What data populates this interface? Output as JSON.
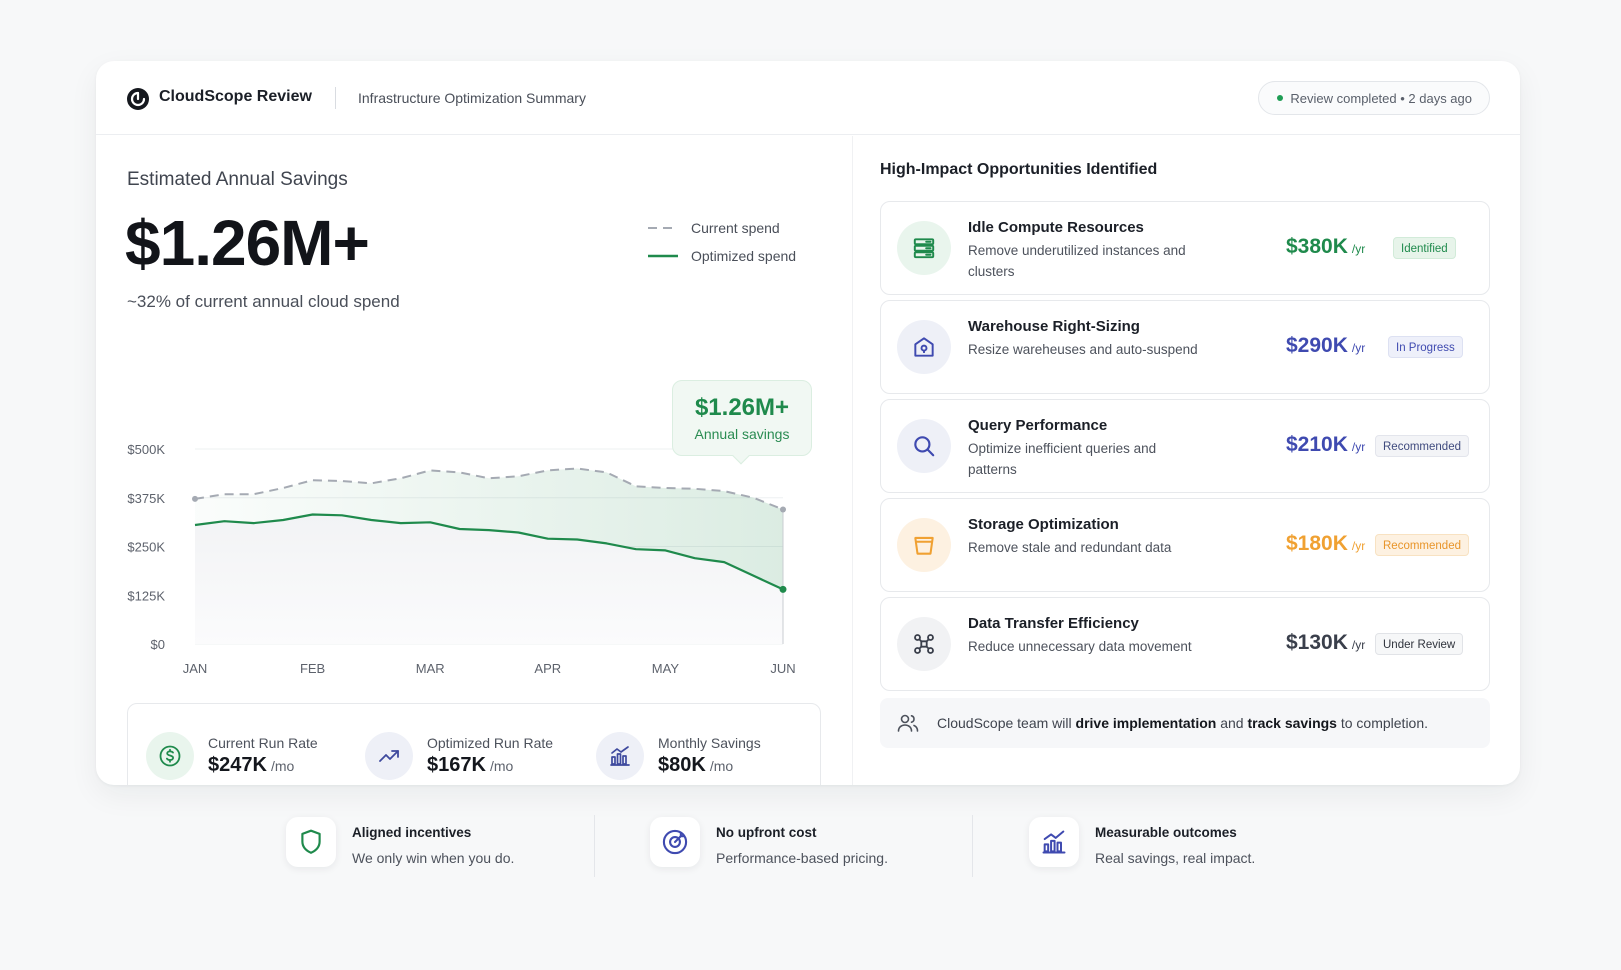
{
  "header": {
    "brand": "CloudScope Review",
    "subtitle": "Infrastructure Optimization Summary",
    "status": "Review completed • 2 days ago"
  },
  "summary": {
    "label": "Estimated Annual Savings",
    "value": "$1.26M+",
    "note": "~32% of current annual cloud spend",
    "legend": {
      "current": "Current spend",
      "optimized": "Optimized spend"
    },
    "callout": {
      "value": "$1.26M+",
      "label": "Annual savings"
    }
  },
  "chart_data": {
    "type": "line",
    "x": [
      "JAN",
      "FEB",
      "MAR",
      "APR",
      "MAY",
      "JUN"
    ],
    "ytick_labels": [
      "$500K",
      "$375K",
      "$250K",
      "$125K",
      "$0"
    ],
    "ylim": [
      0,
      500
    ],
    "grid": true,
    "legend_position": "top-right",
    "series": [
      {
        "name": "Current spend",
        "style": "dashed",
        "color": "#a5aab3",
        "x": [
          0,
          0.25,
          0.5,
          0.75,
          1.0,
          1.25,
          1.5,
          1.75,
          2.0,
          2.25,
          2.5,
          2.75,
          3.0,
          3.25,
          3.5,
          3.75,
          4.0,
          4.25,
          4.5,
          4.75,
          5.0
        ],
        "values": [
          372,
          384,
          384,
          400,
          420,
          418,
          412,
          425,
          445,
          440,
          425,
          430,
          445,
          450,
          440,
          404,
          400,
          398,
          392,
          375,
          345
        ]
      },
      {
        "name": "Optimized spend",
        "style": "solid",
        "color": "#1f8a4c",
        "x": [
          0,
          0.25,
          0.5,
          0.75,
          1.0,
          1.25,
          1.5,
          1.75,
          2.0,
          2.25,
          2.5,
          2.75,
          3.0,
          3.25,
          3.5,
          3.75,
          4.0,
          4.25,
          4.5,
          4.75,
          5.0
        ],
        "values": [
          305,
          315,
          310,
          318,
          332,
          330,
          318,
          310,
          312,
          295,
          292,
          286,
          270,
          268,
          258,
          243,
          240,
          220,
          210,
          175,
          140
        ]
      }
    ]
  },
  "metrics": [
    {
      "label": "Current Run Rate",
      "value": "$247K",
      "unit": "/mo",
      "icon": "dollar-circle-icon",
      "color": "#1f8a4c"
    },
    {
      "label": "Optimized Run Rate",
      "value": "$167K",
      "unit": "/mo",
      "icon": "trend-up-icon",
      "color": "#3f4a9e"
    },
    {
      "label": "Monthly Savings",
      "value": "$80K",
      "unit": "/mo",
      "icon": "bar-chart-icon",
      "color": "#3f4a9e"
    }
  ],
  "opportunities": {
    "title": "High-Impact Opportunities Identified",
    "items": [
      {
        "name": "Idle Compute Resources",
        "desc": "Remove underutilized instances and clusters",
        "amount": "$380K",
        "per": "/yr",
        "badge": "Identified",
        "color": "#1f8a4c",
        "icon": "server-stack-icon"
      },
      {
        "name": "Warehouse Right-Sizing",
        "desc": "Resize wareheuses and auto-suspend",
        "amount": "$290K",
        "per": "/yr",
        "badge": "In Progress",
        "color": "#3f4ab0",
        "icon": "warehouse-icon"
      },
      {
        "name": "Query Performance",
        "desc": "Optimize inefficient queries and patterns",
        "amount": "$210K",
        "per": "/yr",
        "badge": "Recommended",
        "color": "#3f4ab0",
        "icon": "search-icon"
      },
      {
        "name": "Storage Optimization",
        "desc": "Remove stale and redundant data",
        "amount": "$180K",
        "per": "/yr",
        "badge": "Recommended",
        "color": "#f0a132",
        "icon": "bucket-icon"
      },
      {
        "name": "Data Transfer Efficiency",
        "desc": "Reduce unnecessary data movement",
        "amount": "$130K",
        "per": "/yr",
        "badge": "Under Review",
        "color": "#3a3f4b",
        "icon": "network-icon"
      }
    ]
  },
  "team_note": {
    "prefix": "CloudScope team will ",
    "bold1": "drive implementation",
    "mid": " and ",
    "bold2": "track savings",
    "suffix": " to completion."
  },
  "features": [
    {
      "title": "Aligned incentives",
      "desc": "We only win when you do.",
      "icon": "shield-icon"
    },
    {
      "title": "No upfront cost",
      "desc": "Performance-based pricing.",
      "icon": "target-icon"
    },
    {
      "title": "Measurable outcomes",
      "desc": "Real savings, real impact.",
      "icon": "bar-chart-icon"
    }
  ]
}
